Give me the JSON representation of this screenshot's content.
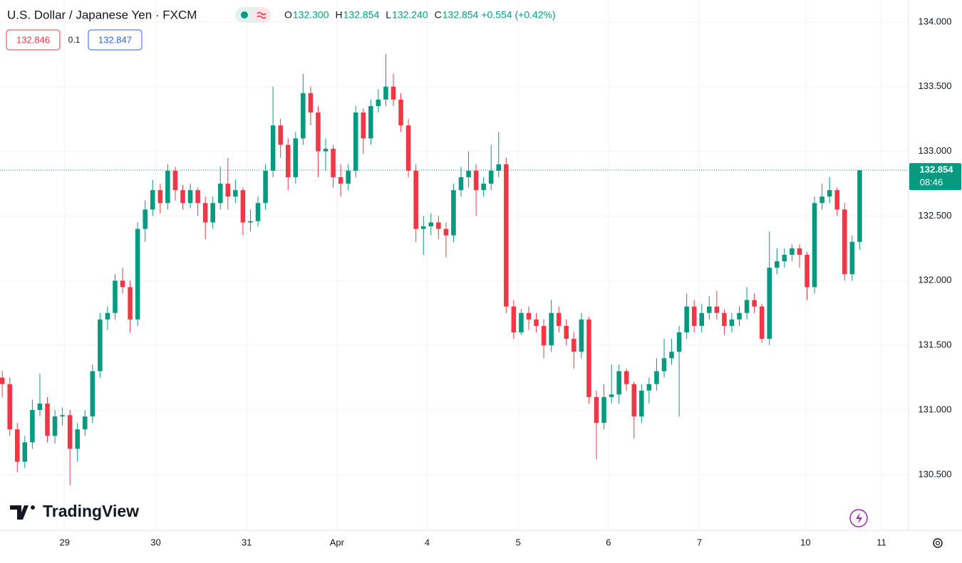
{
  "chart_data": {
    "type": "candlestick",
    "title": "U.S. Dollar / Japanese Yen · FXCM",
    "ohlc_header": [
      {
        "label": "O",
        "value": "132.300"
      },
      {
        "label": "H",
        "value": "132.854"
      },
      {
        "label": "L",
        "value": "132.240"
      },
      {
        "label": "C",
        "value": "132.854"
      }
    ],
    "change": "+0.554 (+0.42%)",
    "bid": "132.846",
    "spread": "0.1",
    "ask": "132.847",
    "last_price": {
      "value": 132.854,
      "label": "132.854"
    },
    "countdown": "08:46",
    "logo": "TradingView",
    "up_color": "#089981",
    "down_color": "#f23645",
    "grid": true,
    "ylim": [
      130.07,
      134.17
    ],
    "yticks": [
      {
        "value": 130.5,
        "label": "130.500"
      },
      {
        "value": 131,
        "label": "131.000"
      },
      {
        "value": 131.5,
        "label": "131.500"
      },
      {
        "value": 132,
        "label": "132.000"
      },
      {
        "value": 132.5,
        "label": "132.500"
      },
      {
        "value": 133,
        "label": "133.000"
      },
      {
        "value": 133.5,
        "label": "133.500"
      },
      {
        "value": 134,
        "label": "134.000"
      }
    ],
    "xlim": [
      -0.3,
      120.5
    ],
    "xticks": [
      {
        "value": 8.3,
        "label": "29"
      },
      {
        "value": 20.4,
        "label": "30"
      },
      {
        "value": 32.5,
        "label": "31"
      },
      {
        "value": 44.5,
        "label": "Apr"
      },
      {
        "value": 56.5,
        "label": "4"
      },
      {
        "value": 68.6,
        "label": "5"
      },
      {
        "value": 80.6,
        "label": "6"
      },
      {
        "value": 92.7,
        "label": "7"
      },
      {
        "value": 106.8,
        "label": "10"
      },
      {
        "value": 116.9,
        "label": "11"
      }
    ],
    "x": [
      0,
      1,
      2,
      3,
      4,
      5,
      6,
      7,
      8,
      9,
      10,
      11,
      12,
      13,
      14,
      15,
      16,
      17,
      18,
      19,
      20,
      21,
      22,
      23,
      24,
      25,
      26,
      27,
      28,
      29,
      30,
      31,
      32,
      33,
      34,
      35,
      36,
      37,
      38,
      39,
      40,
      41,
      42,
      43,
      44,
      45,
      46,
      47,
      48,
      49,
      50,
      51,
      52,
      53,
      54,
      55,
      56,
      57,
      58,
      59,
      60,
      61,
      62,
      63,
      64,
      65,
      66,
      67,
      68,
      69,
      70,
      71,
      72,
      73,
      74,
      75,
      76,
      77,
      78,
      79,
      80,
      81,
      82,
      83,
      84,
      85,
      86,
      87,
      88,
      89,
      90,
      91,
      92,
      93,
      94,
      95,
      96,
      97,
      98,
      99,
      100,
      101,
      102,
      103,
      104,
      105,
      106,
      107,
      108,
      109,
      110,
      111,
      112,
      113,
      114
    ],
    "ohlc": [
      [
        131.25,
        131.3,
        131.1,
        131.2
      ],
      [
        131.2,
        131.25,
        130.8,
        130.85
      ],
      [
        130.85,
        130.9,
        130.52,
        130.6
      ],
      [
        130.6,
        130.8,
        130.55,
        130.75
      ],
      [
        130.75,
        131.08,
        130.7,
        131.0
      ],
      [
        131.0,
        131.28,
        130.95,
        131.05
      ],
      [
        131.05,
        131.1,
        130.75,
        130.8
      ],
      [
        130.8,
        131.0,
        130.74,
        130.95
      ],
      [
        130.95,
        131.02,
        130.88,
        130.96
      ],
      [
        130.96,
        131.0,
        130.42,
        130.7
      ],
      [
        130.7,
        130.9,
        130.6,
        130.85
      ],
      [
        130.85,
        131.0,
        130.8,
        130.95
      ],
      [
        130.95,
        131.35,
        130.9,
        131.3
      ],
      [
        131.3,
        131.75,
        131.25,
        131.7
      ],
      [
        131.7,
        131.8,
        131.62,
        131.75
      ],
      [
        131.75,
        132.05,
        131.7,
        132.0
      ],
      [
        132.0,
        132.1,
        131.9,
        131.95
      ],
      [
        131.95,
        132.0,
        131.6,
        131.7
      ],
      [
        131.7,
        132.45,
        131.65,
        132.4
      ],
      [
        132.4,
        132.62,
        132.3,
        132.55
      ],
      [
        132.55,
        132.78,
        132.5,
        132.7
      ],
      [
        132.7,
        132.75,
        132.52,
        132.6
      ],
      [
        132.6,
        132.9,
        132.55,
        132.85
      ],
      [
        132.85,
        132.88,
        132.62,
        132.7
      ],
      [
        132.7,
        132.74,
        132.55,
        132.6
      ],
      [
        132.6,
        132.75,
        132.56,
        132.7
      ],
      [
        132.7,
        132.72,
        132.5,
        132.6
      ],
      [
        132.6,
        132.65,
        132.32,
        132.45
      ],
      [
        132.45,
        132.65,
        132.4,
        132.6
      ],
      [
        132.6,
        132.88,
        132.55,
        132.75
      ],
      [
        132.75,
        132.95,
        132.55,
        132.65
      ],
      [
        132.65,
        132.78,
        132.6,
        132.7
      ],
      [
        132.7,
        132.72,
        132.35,
        132.45
      ],
      [
        132.45,
        132.55,
        132.38,
        132.46
      ],
      [
        132.46,
        132.65,
        132.42,
        132.6
      ],
      [
        132.6,
        132.9,
        132.55,
        132.85
      ],
      [
        132.85,
        133.5,
        132.8,
        133.2
      ],
      [
        133.2,
        133.25,
        132.95,
        133.05
      ],
      [
        133.05,
        133.1,
        132.7,
        132.8
      ],
      [
        132.8,
        133.15,
        132.75,
        133.1
      ],
      [
        133.1,
        133.6,
        133.05,
        133.45
      ],
      [
        133.45,
        133.5,
        133.2,
        133.3
      ],
      [
        133.3,
        133.35,
        132.8,
        133.0
      ],
      [
        133.0,
        133.1,
        132.85,
        133.02
      ],
      [
        133.02,
        133.05,
        132.72,
        132.8
      ],
      [
        132.8,
        132.9,
        132.65,
        132.75
      ],
      [
        132.75,
        132.9,
        132.7,
        132.85
      ],
      [
        132.85,
        133.35,
        132.8,
        133.3
      ],
      [
        133.3,
        133.33,
        132.98,
        133.1
      ],
      [
        133.1,
        133.4,
        133.05,
        133.35
      ],
      [
        133.35,
        133.48,
        133.3,
        133.4
      ],
      [
        133.4,
        133.75,
        133.35,
        133.5
      ],
      [
        133.5,
        133.6,
        133.35,
        133.4
      ],
      [
        133.4,
        133.45,
        133.15,
        133.2
      ],
      [
        133.2,
        133.25,
        132.8,
        132.85
      ],
      [
        132.85,
        132.9,
        132.3,
        132.4
      ],
      [
        132.4,
        132.5,
        132.2,
        132.42
      ],
      [
        132.42,
        132.52,
        132.35,
        132.45
      ],
      [
        132.45,
        132.5,
        132.32,
        132.4
      ],
      [
        132.4,
        132.45,
        132.18,
        132.35
      ],
      [
        132.35,
        132.75,
        132.3,
        132.7
      ],
      [
        132.7,
        132.88,
        132.65,
        132.8
      ],
      [
        132.8,
        133.0,
        132.72,
        132.85
      ],
      [
        132.85,
        132.9,
        132.5,
        132.7
      ],
      [
        132.7,
        132.8,
        132.65,
        132.75
      ],
      [
        132.75,
        133.05,
        132.7,
        132.85
      ],
      [
        132.85,
        133.15,
        132.8,
        132.9
      ],
      [
        132.9,
        132.95,
        131.75,
        131.8
      ],
      [
        131.8,
        131.85,
        131.55,
        131.6
      ],
      [
        131.6,
        131.78,
        131.58,
        131.75
      ],
      [
        131.75,
        131.8,
        131.62,
        131.7
      ],
      [
        131.7,
        131.75,
        131.6,
        131.65
      ],
      [
        131.65,
        131.7,
        131.4,
        131.5
      ],
      [
        131.5,
        131.85,
        131.45,
        131.75
      ],
      [
        131.75,
        131.8,
        131.6,
        131.65
      ],
      [
        131.65,
        131.7,
        131.5,
        131.55
      ],
      [
        131.55,
        131.6,
        131.32,
        131.45
      ],
      [
        131.45,
        131.75,
        131.4,
        131.7
      ],
      [
        131.7,
        131.72,
        131.05,
        131.1
      ],
      [
        131.1,
        131.15,
        130.62,
        130.9
      ],
      [
        130.9,
        131.2,
        130.85,
        131.1
      ],
      [
        131.1,
        131.35,
        131.05,
        131.12
      ],
      [
        131.12,
        131.35,
        131.05,
        131.3
      ],
      [
        131.3,
        131.32,
        131.15,
        131.2
      ],
      [
        131.2,
        131.22,
        130.78,
        130.95
      ],
      [
        130.95,
        131.2,
        130.9,
        131.15
      ],
      [
        131.15,
        131.25,
        131.05,
        131.2
      ],
      [
        131.2,
        131.4,
        131.15,
        131.3
      ],
      [
        131.3,
        131.55,
        131.25,
        131.4
      ],
      [
        131.4,
        131.55,
        131.35,
        131.45
      ],
      [
        131.45,
        131.65,
        130.95,
        131.6
      ],
      [
        131.6,
        131.9,
        131.55,
        131.8
      ],
      [
        131.8,
        131.85,
        131.6,
        131.65
      ],
      [
        131.65,
        131.82,
        131.6,
        131.75
      ],
      [
        131.75,
        131.88,
        131.7,
        131.8
      ],
      [
        131.8,
        131.92,
        131.7,
        131.75
      ],
      [
        131.75,
        131.78,
        131.58,
        131.65
      ],
      [
        131.65,
        131.75,
        131.6,
        131.7
      ],
      [
        131.7,
        131.8,
        131.65,
        131.75
      ],
      [
        131.75,
        131.95,
        131.7,
        131.85
      ],
      [
        131.85,
        131.9,
        131.75,
        131.8
      ],
      [
        131.8,
        131.82,
        131.52,
        131.55
      ],
      [
        131.55,
        132.38,
        131.5,
        132.1
      ],
      [
        132.1,
        132.25,
        132.05,
        132.15
      ],
      [
        132.15,
        132.25,
        132.1,
        132.2
      ],
      [
        132.2,
        132.28,
        132.15,
        132.25
      ],
      [
        132.25,
        132.28,
        132.1,
        132.2
      ],
      [
        132.2,
        132.22,
        131.85,
        131.95
      ],
      [
        131.95,
        132.65,
        131.9,
        132.6
      ],
      [
        132.6,
        132.75,
        132.55,
        132.65
      ],
      [
        132.65,
        132.8,
        132.6,
        132.7
      ],
      [
        132.7,
        132.72,
        132.5,
        132.55
      ],
      [
        132.55,
        132.6,
        132.0,
        132.05
      ],
      [
        132.05,
        132.35,
        132.0,
        132.3
      ],
      [
        132.3,
        132.854,
        132.24,
        132.854
      ]
    ]
  }
}
